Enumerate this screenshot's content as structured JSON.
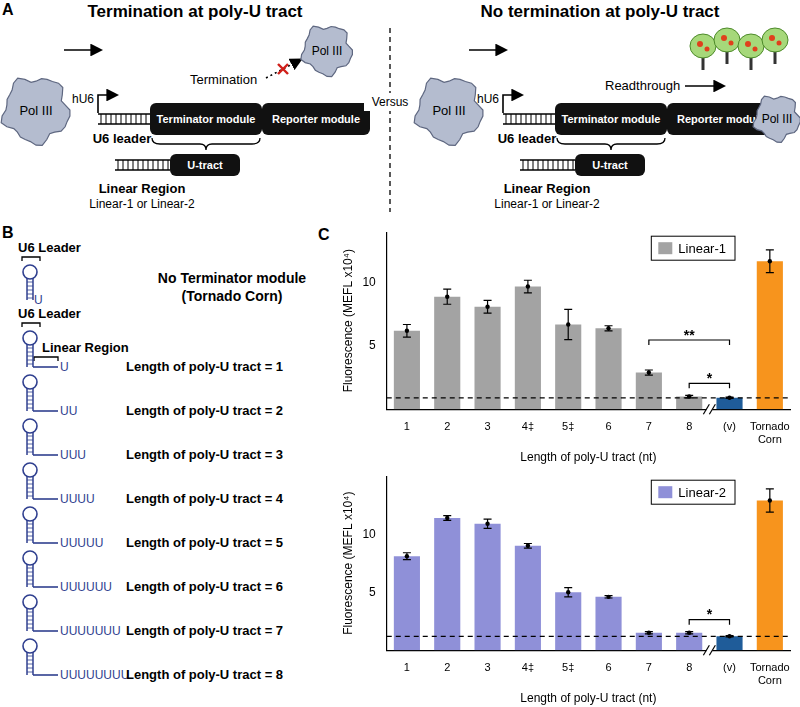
{
  "panel_a": {
    "label": "A",
    "versus": "Versus",
    "left": {
      "title": "Termination at poly-U tract",
      "polymerase": "Pol III",
      "promoter": "hU6",
      "event": "Termination",
      "leader": "U6 leader",
      "terminator": "Terminator module",
      "reporter": "Reporter module",
      "u_tract": "U-tract",
      "linear_region": "Linear Region",
      "linear_options": "Linear-1 or Linear-2"
    },
    "right": {
      "title": "No termination at poly-U tract",
      "polymerase": "Pol III",
      "promoter": "hU6",
      "event": "Readthrough",
      "leader": "U6 leader",
      "terminator": "Terminator module",
      "reporter": "Reporter module",
      "u_tract": "U-tract",
      "linear_region": "Linear Region",
      "linear_options": "Linear-1 or Linear-2"
    }
  },
  "panel_b": {
    "label": "B",
    "constructs": [
      {
        "leader": "U6 Leader",
        "tail": "U",
        "text": [
          "No Terminator module",
          "(Tornado Corn)"
        ]
      },
      {
        "leader": "U6 Leader",
        "linear_region": "Linear Region",
        "tail": "U",
        "text": [
          "Length of poly-U tract = 1"
        ]
      },
      {
        "tail": "UU",
        "text": [
          "Length of poly-U tract = 2"
        ]
      },
      {
        "tail": "UUU",
        "text": [
          "Length of poly-U tract = 3"
        ]
      },
      {
        "tail": "UUUU",
        "text": [
          "Length of poly-U tract = 4"
        ]
      },
      {
        "tail": "UUUUU",
        "text": [
          "Length of poly-U tract = 5"
        ]
      },
      {
        "tail": "UUUUUU",
        "text": [
          "Length of poly-U tract = 6"
        ]
      },
      {
        "tail": "UUUUUUU",
        "text": [
          "Length of poly-U tract = 7"
        ]
      },
      {
        "tail": "UUUUUUUU",
        "text": [
          "Length of poly-U tract = 8"
        ]
      }
    ]
  },
  "panel_c": {
    "label": "C"
  },
  "chart_data": [
    {
      "type": "bar",
      "x_label": "Length of poly-U tract (nt)",
      "y_label": "Fluorescence (MEFL x10⁴)",
      "categories": [
        "1",
        "2",
        "3",
        "4‡",
        "5‡",
        "6",
        "7",
        "8",
        "(v)",
        "Tornado Corn"
      ],
      "series": [
        {
          "name": "Linear-1",
          "color": "#a3a3a3",
          "values": [
            6.2,
            8.9,
            8.1,
            9.7,
            6.7,
            6.4,
            2.9,
            1.0,
            0.9,
            11.7
          ],
          "errors": [
            0.5,
            0.6,
            0.5,
            0.5,
            1.2,
            0.2,
            0.2,
            0.1,
            0.05,
            0.9
          ]
        }
      ],
      "colors": [
        "#a3a3a3",
        "#a3a3a3",
        "#a3a3a3",
        "#a3a3a3",
        "#a3a3a3",
        "#a3a3a3",
        "#a3a3a3",
        "#a3a3a3",
        "#1f5c99",
        "#f7941d"
      ],
      "ylim": [
        0,
        14
      ],
      "yticks": [
        5,
        10
      ],
      "grid": false,
      "legend": "upper right",
      "reference_line": 0.9,
      "annotations": [
        {
          "from": "7",
          "to": "(v)",
          "label": "**"
        },
        {
          "from": "8",
          "to": "(v)",
          "label": "*"
        }
      ]
    },
    {
      "type": "bar",
      "x_label": "Length of poly-U tract (nt)",
      "y_label": "Fluorescence (MEFL x10⁴)",
      "categories": [
        "1",
        "2",
        "3",
        "4‡",
        "5‡",
        "6",
        "7",
        "8",
        "(v)",
        "Tornado Corn"
      ],
      "series": [
        {
          "name": "Linear-2",
          "color": "#8f90d8",
          "values": [
            8.1,
            11.4,
            10.9,
            9.0,
            5.0,
            4.6,
            1.5,
            1.5,
            1.2,
            12.9
          ],
          "errors": [
            0.3,
            0.2,
            0.4,
            0.2,
            0.4,
            0.1,
            0.1,
            0.1,
            0.05,
            1.0
          ]
        }
      ],
      "colors": [
        "#8f90d8",
        "#8f90d8",
        "#8f90d8",
        "#8f90d8",
        "#8f90d8",
        "#8f90d8",
        "#8f90d8",
        "#8f90d8",
        "#1f5c99",
        "#f7941d"
      ],
      "ylim": [
        0,
        15
      ],
      "yticks": [
        5,
        10
      ],
      "grid": false,
      "legend": "upper right",
      "reference_line": 1.2,
      "annotations": [
        {
          "from": "8",
          "to": "(v)",
          "label": "*"
        }
      ]
    }
  ]
}
